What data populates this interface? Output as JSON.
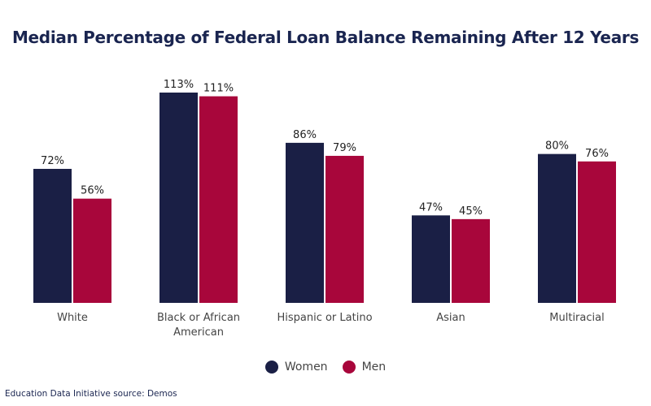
{
  "chart_data": {
    "type": "bar",
    "title": "Median Percentage of Federal Loan Balance Remaining After 12 Years",
    "categories": [
      [
        "White"
      ],
      [
        "Black or African",
        "American"
      ],
      [
        "Hispanic or Latino"
      ],
      [
        "Asian"
      ],
      [
        "Multiracial"
      ]
    ],
    "series": [
      {
        "name": "Women",
        "color": "#1a1f45",
        "values": [
          72,
          113,
          86,
          47,
          80
        ]
      },
      {
        "name": "Men",
        "color": "#a8063b",
        "values": [
          56,
          111,
          79,
          45,
          76
        ]
      }
    ],
    "value_suffix": "%",
    "ylim": [
      0,
      115
    ],
    "xlabel": "",
    "ylabel": "",
    "grid": false,
    "legend_position": "bottom-center"
  },
  "source": "Education Data Initiative source: Demos"
}
